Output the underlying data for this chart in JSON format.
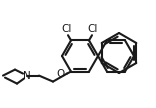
{
  "bg_color": "#ffffff",
  "line_color": "#1a1a1a",
  "line_width": 1.5,
  "text_color": "#1a1a1a",
  "font_size": 7.5,
  "cl_font_size": 7.5
}
